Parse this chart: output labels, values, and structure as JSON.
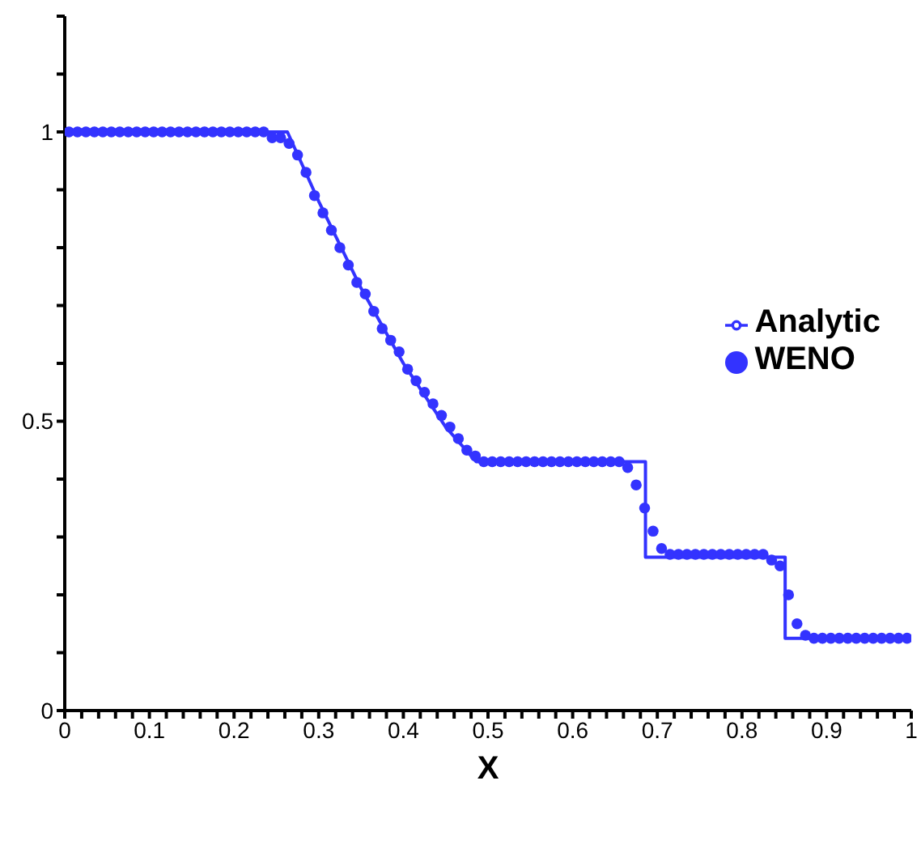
{
  "chart_data": {
    "type": "scatter",
    "xlabel": "X",
    "xlim": [
      0,
      1
    ],
    "ylim": [
      0,
      1.2
    ],
    "xticks": [
      0,
      {
        "value": 0.02,
        "label": null
      },
      {
        "value": 0.04,
        "label": null
      },
      {
        "value": 0.06,
        "label": null
      },
      {
        "value": 0.08,
        "label": null
      },
      0.1,
      {
        "value": 0.12,
        "label": null
      },
      {
        "value": 0.14,
        "label": null
      },
      {
        "value": 0.16,
        "label": null
      },
      {
        "value": 0.18,
        "label": null
      },
      0.2,
      {
        "value": 0.22,
        "label": null
      },
      {
        "value": 0.24,
        "label": null
      },
      {
        "value": 0.26,
        "label": null
      },
      {
        "value": 0.28,
        "label": null
      },
      0.3,
      {
        "value": 0.32,
        "label": null
      },
      {
        "value": 0.34,
        "label": null
      },
      {
        "value": 0.36,
        "label": null
      },
      {
        "value": 0.38,
        "label": null
      },
      0.4,
      {
        "value": 0.42,
        "label": null
      },
      {
        "value": 0.44,
        "label": null
      },
      {
        "value": 0.46,
        "label": null
      },
      {
        "value": 0.48,
        "label": null
      },
      0.5,
      {
        "value": 0.52,
        "label": null
      },
      {
        "value": 0.54,
        "label": null
      },
      {
        "value": 0.56,
        "label": null
      },
      {
        "value": 0.58,
        "label": null
      },
      0.6,
      {
        "value": 0.62,
        "label": null
      },
      {
        "value": 0.64,
        "label": null
      },
      {
        "value": 0.66,
        "label": null
      },
      {
        "value": 0.68,
        "label": null
      },
      0.7,
      {
        "value": 0.72,
        "label": null
      },
      {
        "value": 0.74,
        "label": null
      },
      {
        "value": 0.76,
        "label": null
      },
      {
        "value": 0.78,
        "label": null
      },
      0.8,
      {
        "value": 0.82,
        "label": null
      },
      {
        "value": 0.84,
        "label": null
      },
      {
        "value": 0.86,
        "label": null
      },
      {
        "value": 0.88,
        "label": null
      },
      0.9,
      {
        "value": 0.92,
        "label": null
      },
      {
        "value": 0.94,
        "label": null
      },
      {
        "value": 0.96,
        "label": null
      },
      {
        "value": 0.98,
        "label": null
      },
      1
    ],
    "yticks": [
      0,
      {
        "value": 0.1,
        "label": null
      },
      {
        "value": 0.2,
        "label": null
      },
      {
        "value": 0.3,
        "label": null
      },
      {
        "value": 0.4,
        "label": null
      },
      0.5,
      {
        "value": 0.6,
        "label": null
      },
      {
        "value": 0.7,
        "label": null
      },
      {
        "value": 0.8,
        "label": null
      },
      {
        "value": 0.9,
        "label": null
      },
      1,
      {
        "value": 1.1,
        "label": null
      },
      {
        "value": 1.2,
        "label": null
      }
    ],
    "legend": "right",
    "series": [
      {
        "name": "WENO",
        "marker": "circle",
        "color": "#3333ff",
        "x": [
          0.005,
          0.015,
          0.025,
          0.035,
          0.045,
          0.055,
          0.065,
          0.075,
          0.085,
          0.095,
          0.105,
          0.115,
          0.125,
          0.135,
          0.145,
          0.155,
          0.165,
          0.175,
          0.185,
          0.195,
          0.205,
          0.215,
          0.225,
          0.235,
          0.245,
          0.255,
          0.265,
          0.275,
          0.285,
          0.295,
          0.305,
          0.315,
          0.325,
          0.335,
          0.345,
          0.355,
          0.365,
          0.375,
          0.385,
          0.395,
          0.405,
          0.415,
          0.425,
          0.435,
          0.445,
          0.455,
          0.465,
          0.475,
          0.485,
          0.495,
          0.505,
          0.515,
          0.525,
          0.535,
          0.545,
          0.555,
          0.565,
          0.575,
          0.585,
          0.595,
          0.605,
          0.615,
          0.625,
          0.635,
          0.645,
          0.655,
          0.665,
          0.675,
          0.685,
          0.695,
          0.705,
          0.715,
          0.725,
          0.735,
          0.745,
          0.755,
          0.765,
          0.775,
          0.785,
          0.795,
          0.805,
          0.815,
          0.825,
          0.835,
          0.845,
          0.855,
          0.865,
          0.875,
          0.885,
          0.895,
          0.905,
          0.915,
          0.925,
          0.935,
          0.945,
          0.955,
          0.965,
          0.975,
          0.985,
          0.995
        ],
        "values": [
          1,
          1,
          1,
          1,
          1,
          1,
          1,
          1,
          1,
          1,
          1,
          1,
          1,
          1,
          1,
          1,
          1,
          1,
          1,
          1,
          1,
          1,
          1,
          1,
          0.99,
          0.99,
          0.98,
          0.96,
          0.93,
          0.89,
          0.86,
          0.83,
          0.8,
          0.77,
          0.74,
          0.72,
          0.69,
          0.66,
          0.64,
          0.62,
          0.59,
          0.57,
          0.55,
          0.53,
          0.51,
          0.49,
          0.47,
          0.45,
          0.44,
          0.43,
          0.43,
          0.43,
          0.43,
          0.43,
          0.43,
          0.43,
          0.43,
          0.43,
          0.43,
          0.43,
          0.43,
          0.43,
          0.43,
          0.43,
          0.43,
          0.43,
          0.42,
          0.39,
          0.35,
          0.31,
          0.28,
          0.27,
          0.27,
          0.27,
          0.27,
          0.27,
          0.27,
          0.27,
          0.27,
          0.27,
          0.27,
          0.27,
          0.27,
          0.26,
          0.25,
          0.2,
          0.15,
          0.13,
          0.125,
          0.125,
          0.125,
          0.125,
          0.125,
          0.125,
          0.125,
          0.125,
          0.125,
          0.125,
          0.125,
          0.125
        ]
      },
      {
        "name": "Analytic",
        "type": "line",
        "line_style": "solid",
        "color": "#3333ff",
        "x": [
          0,
          0.263,
          0.3,
          0.35,
          0.4,
          0.45,
          0.486,
          0.686,
          0.686,
          0.851,
          0.851,
          1
        ],
        "values": [
          1,
          1,
          0.88,
          0.73,
          0.6,
          0.49,
          0.43,
          0.43,
          0.265,
          0.265,
          0.125,
          0.125
        ]
      }
    ]
  }
}
